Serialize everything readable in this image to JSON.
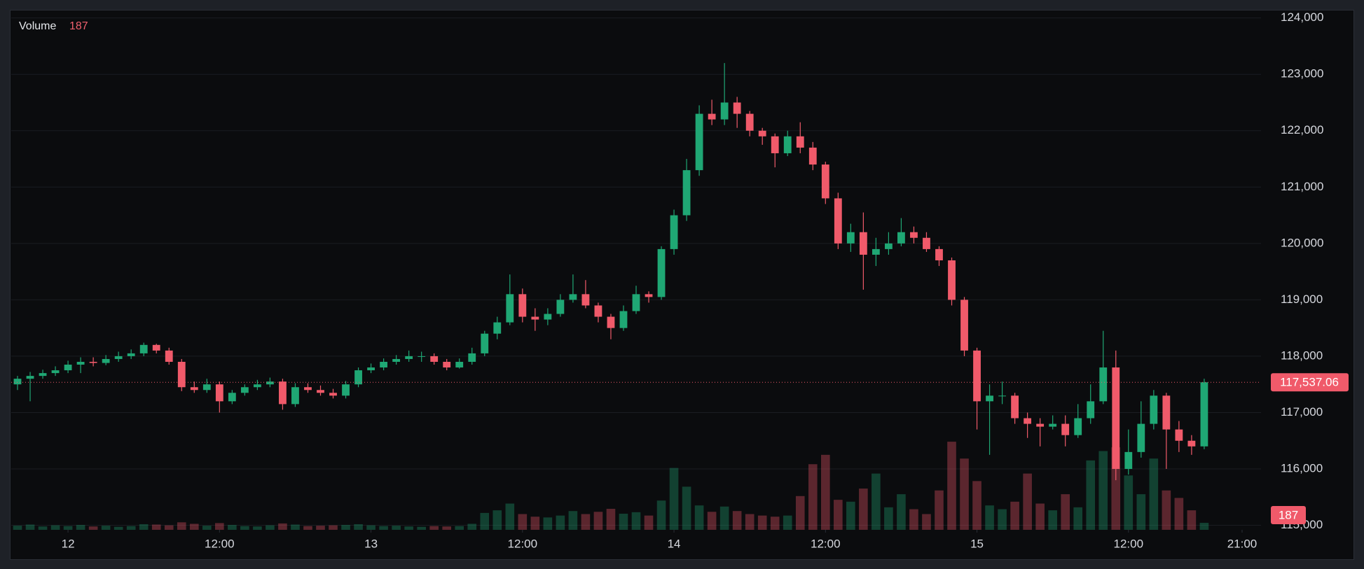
{
  "chart_data": {
    "type": "candlestick",
    "volume_name": "Volume",
    "up_color": "#1fa774",
    "down_color": "#f05a6a",
    "grid": true,
    "xlim": [
      -0.5,
      98.5
    ],
    "xticks": [
      {
        "value": 4,
        "label": "12"
      },
      {
        "value": 16,
        "label": "12:00"
      },
      {
        "value": 28,
        "label": "13"
      },
      {
        "value": 40,
        "label": "12:00"
      },
      {
        "value": 52,
        "label": "14"
      },
      {
        "value": 64,
        "label": "12:00"
      },
      {
        "value": 76,
        "label": "15"
      },
      {
        "value": 88,
        "label": "12:00"
      },
      {
        "value": 97,
        "label": "21:00"
      }
    ],
    "ylim": [
      114920,
      124120
    ],
    "yticks": [
      {
        "value": 115000,
        "label": "115,000"
      },
      {
        "value": 116000,
        "label": "116,000"
      },
      {
        "value": 117000,
        "label": "117,000"
      },
      {
        "value": 118000,
        "label": "118,000"
      },
      {
        "value": 119000,
        "label": "119,000"
      },
      {
        "value": 120000,
        "label": "120,000"
      },
      {
        "value": 121000,
        "label": "121,000"
      },
      {
        "value": 122000,
        "label": "122,000"
      },
      {
        "value": 123000,
        "label": "123,000"
      },
      {
        "value": 124000,
        "label": "124,000"
      }
    ],
    "vlim": [
      0,
      2800
    ],
    "last_price": {
      "value": 117537.06,
      "label": "117,537.06"
    },
    "open": [
      117500,
      117600,
      117650,
      117700,
      117750,
      117850,
      117900,
      117880,
      117950,
      118000,
      118050,
      118200,
      118100,
      117900,
      117450,
      117400,
      117500,
      117200,
      117350,
      117450,
      117500,
      117550,
      117150,
      117450,
      117400,
      117350,
      117300,
      117500,
      117750,
      117800,
      117900,
      117950,
      118000,
      118000,
      117900,
      117800,
      117900,
      118050,
      118400,
      118600,
      119100,
      118700,
      118650,
      118750,
      119000,
      119100,
      118900,
      118700,
      118500,
      118800,
      119100,
      119050,
      119900,
      120500,
      121300,
      122300,
      122200,
      122500,
      122300,
      122000,
      121900,
      121600,
      121900,
      121700,
      121400,
      120800,
      120000,
      120200,
      119800,
      119900,
      120000,
      120200,
      120100,
      119900,
      119700,
      119000,
      118100,
      117200,
      117300,
      117300,
      116900,
      116800,
      116750,
      116800,
      116600,
      116900,
      117200,
      117800,
      116000,
      116300,
      116800,
      117300,
      116700,
      116500,
      116400
    ],
    "high": [
      117650,
      117720,
      117760,
      117820,
      117920,
      117980,
      117980,
      118020,
      118080,
      118120,
      118240,
      118220,
      118150,
      117950,
      117550,
      117600,
      117550,
      117400,
      117500,
      117580,
      117620,
      117600,
      117520,
      117520,
      117480,
      117420,
      117560,
      117800,
      117870,
      117960,
      118020,
      118100,
      118080,
      118050,
      117950,
      117960,
      118150,
      118450,
      118700,
      119450,
      119200,
      118850,
      118850,
      119100,
      119450,
      119350,
      118950,
      118750,
      118900,
      119250,
      119150,
      119950,
      120600,
      121500,
      122450,
      122550,
      123200,
      122600,
      122350,
      122050,
      121950,
      122000,
      122150,
      121800,
      121450,
      120900,
      120350,
      120550,
      120100,
      120200,
      120450,
      120300,
      120200,
      119950,
      119750,
      119050,
      118150,
      117500,
      117550,
      117350,
      117000,
      116900,
      116950,
      116950,
      117150,
      117500,
      118450,
      118100,
      116700,
      117200,
      117400,
      117350,
      116850,
      116600,
      117600
    ],
    "low": [
      117400,
      117200,
      117600,
      117650,
      117700,
      117700,
      117820,
      117840,
      117900,
      117950,
      118000,
      118050,
      117850,
      117380,
      117350,
      117350,
      117000,
      117150,
      117300,
      117400,
      117450,
      117050,
      117100,
      117350,
      117300,
      117250,
      117250,
      117450,
      117700,
      117750,
      117850,
      117900,
      117900,
      117850,
      117750,
      117780,
      117850,
      118000,
      118300,
      118550,
      118600,
      118450,
      118550,
      118700,
      118950,
      118850,
      118600,
      118300,
      118450,
      118750,
      118950,
      119000,
      119800,
      120400,
      121200,
      122100,
      122100,
      122050,
      121900,
      121750,
      121350,
      121550,
      121600,
      121300,
      120700,
      119900,
      119850,
      119180,
      119600,
      119800,
      119950,
      120000,
      119850,
      119600,
      118900,
      118000,
      116700,
      116250,
      117150,
      116800,
      116550,
      116400,
      116700,
      116400,
      116550,
      116800,
      117150,
      115800,
      115900,
      116200,
      116700,
      116000,
      116300,
      116250,
      116350
    ],
    "close": [
      117600,
      117650,
      117700,
      117750,
      117850,
      117900,
      117880,
      117950,
      118000,
      118050,
      118200,
      118100,
      117900,
      117450,
      117400,
      117500,
      117200,
      117350,
      117450,
      117500,
      117550,
      117150,
      117450,
      117400,
      117350,
      117300,
      117500,
      117750,
      117800,
      117900,
      117950,
      118000,
      118000,
      117900,
      117800,
      117900,
      118050,
      118400,
      118600,
      119100,
      118700,
      118650,
      118750,
      119000,
      119100,
      118900,
      118700,
      118500,
      118800,
      119100,
      119050,
      119900,
      120500,
      121300,
      122300,
      122200,
      122500,
      122300,
      122000,
      121900,
      121600,
      121900,
      121700,
      121400,
      120800,
      120000,
      120200,
      119800,
      119900,
      120000,
      120200,
      120100,
      119900,
      119700,
      119000,
      118100,
      117200,
      117300,
      117300,
      116900,
      116800,
      116750,
      116800,
      116600,
      116900,
      117200,
      117800,
      116000,
      116300,
      116800,
      117300,
      116700,
      116500,
      116400,
      117537.06
    ],
    "volume": [
      110,
      140,
      90,
      120,
      100,
      130,
      90,
      110,
      80,
      100,
      150,
      140,
      120,
      200,
      160,
      110,
      180,
      130,
      100,
      90,
      120,
      170,
      140,
      100,
      110,
      120,
      130,
      150,
      120,
      100,
      110,
      90,
      80,
      100,
      90,
      100,
      160,
      450,
      520,
      700,
      420,
      350,
      330,
      380,
      500,
      420,
      480,
      560,
      430,
      470,
      380,
      780,
      1650,
      1150,
      650,
      480,
      620,
      500,
      420,
      380,
      350,
      380,
      900,
      1750,
      2000,
      800,
      750,
      1100,
      1500,
      600,
      950,
      550,
      420,
      1050,
      2350,
      1900,
      1300,
      650,
      550,
      750,
      1500,
      700,
      520,
      950,
      600,
      1850,
      2100,
      2200,
      1450,
      950,
      1900,
      1050,
      850,
      520,
      187
    ]
  }
}
